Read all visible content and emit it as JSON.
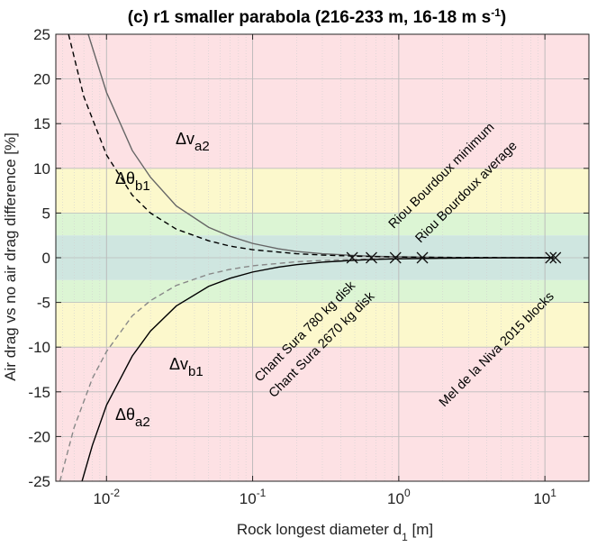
{
  "chart_data": {
    "type": "line",
    "title_main": "(c) r1 smaller parabola (216-233 m, 16-18 m s",
    "title_sup": "-1",
    "title_end": ")",
    "xlabel_main": "Rock longest diameter d",
    "xlabel_sub": "1",
    "xlabel_end": " [m]",
    "ylabel": "Air drag vs no air drag difference [%]",
    "x_scale": "log",
    "xlim": [
      0.0045,
      20
    ],
    "ylim": [
      -25,
      25
    ],
    "grid": true,
    "xticks": [
      0.01,
      0.1,
      1,
      10
    ],
    "xtick_labels": [
      {
        "base": "10",
        "exp": "-2"
      },
      {
        "base": "10",
        "exp": "-1"
      },
      {
        "base": "10",
        "exp": "0"
      },
      {
        "base": "10",
        "exp": "1"
      }
    ],
    "yticks": [
      -25,
      -20,
      -15,
      -10,
      -5,
      0,
      5,
      10,
      15,
      20,
      25
    ],
    "ytick_labels": [
      "-25",
      "-20",
      "-15",
      "-10",
      "-5",
      "0",
      "5",
      "10",
      "15",
      "20",
      "25"
    ],
    "bands": [
      {
        "from": 10,
        "to": 25,
        "color": "#fde1e4"
      },
      {
        "from": -25,
        "to": -10,
        "color": "#fde1e4"
      },
      {
        "from": 5,
        "to": 10,
        "color": "#fcf8cc"
      },
      {
        "from": -10,
        "to": -5,
        "color": "#fcf8cc"
      },
      {
        "from": 2.5,
        "to": 5,
        "color": "#dcf5d4"
      },
      {
        "from": -5,
        "to": -2.5,
        "color": "#dcf5d4"
      },
      {
        "from": -2.5,
        "to": 2.5,
        "color": "#cfe6e0"
      }
    ],
    "series": [
      {
        "label_base": "Δv",
        "label_sub": "a2",
        "color": "#666666",
        "dash": "none",
        "x": [
          0.0075,
          0.01,
          0.015,
          0.02,
          0.03,
          0.05,
          0.07,
          0.1,
          0.15,
          0.2,
          0.3,
          0.5,
          0.7,
          1,
          2,
          5,
          11.5
        ],
        "y": [
          25,
          18.5,
          12,
          9,
          5.8,
          3.4,
          2.4,
          1.6,
          1.0,
          0.7,
          0.45,
          0.25,
          0.15,
          0.1,
          0.04,
          0.01,
          0
        ]
      },
      {
        "label_base": "Δθ",
        "label_sub": "b1",
        "color": "#000000",
        "dash": "6,4",
        "x": [
          0.0055,
          0.007,
          0.01,
          0.015,
          0.02,
          0.03,
          0.05,
          0.07,
          0.1,
          0.2,
          0.3,
          0.5,
          1,
          2,
          5,
          11.5
        ],
        "y": [
          25,
          18,
          11.5,
          7,
          5,
          3.2,
          1.9,
          1.3,
          0.9,
          0.45,
          0.3,
          0.18,
          0.08,
          0.04,
          0.01,
          0
        ]
      },
      {
        "label_base": "Δθ",
        "label_sub": "a2",
        "color": "#888888",
        "dash": "6,4",
        "x": [
          0.0048,
          0.006,
          0.008,
          0.01,
          0.015,
          0.02,
          0.03,
          0.05,
          0.07,
          0.1,
          0.2,
          0.3,
          0.5,
          1,
          2,
          5,
          11.5
        ],
        "y": [
          -25,
          -19,
          -13.5,
          -10.5,
          -6.5,
          -4.8,
          -3.1,
          -1.85,
          -1.3,
          -0.9,
          -0.45,
          -0.3,
          -0.18,
          -0.08,
          -0.04,
          -0.01,
          0
        ]
      },
      {
        "label_base": "Δv",
        "label_sub": "b1",
        "color": "#000000",
        "dash": "none",
        "x": [
          0.0068,
          0.008,
          0.01,
          0.015,
          0.02,
          0.03,
          0.05,
          0.07,
          0.1,
          0.15,
          0.2,
          0.3,
          0.5,
          0.7,
          1,
          2,
          5,
          11.5
        ],
        "y": [
          -25,
          -21,
          -16.5,
          -11,
          -8.2,
          -5.4,
          -3.2,
          -2.3,
          -1.6,
          -1.05,
          -0.78,
          -0.5,
          -0.28,
          -0.18,
          -0.12,
          -0.05,
          -0.01,
          0
        ]
      }
    ],
    "markers": [
      {
        "x": 0.48,
        "y": 0
      },
      {
        "x": 0.65,
        "y": 0
      },
      {
        "x": 0.95,
        "y": 0
      },
      {
        "x": 1.45,
        "y": 0
      },
      {
        "x": 11.0,
        "y": 0
      },
      {
        "x": 11.8,
        "y": 0
      }
    ],
    "annotations": [
      {
        "text": "Riou Bourdoux minimum",
        "x": 0.95,
        "y": 3.2
      },
      {
        "text": "Riou Bourdoux average",
        "x": 1.45,
        "y": 1.6
      },
      {
        "text": "Chant Sura 780 kg disk",
        "x": 0.48,
        "y": -3.2
      },
      {
        "text": "Chant Sura 2670 kg disk",
        "x": 0.65,
        "y": -4.4
      },
      {
        "text": "Mel de la Niva 2015 blocks",
        "x": 11.0,
        "y": -4.4
      }
    ]
  }
}
